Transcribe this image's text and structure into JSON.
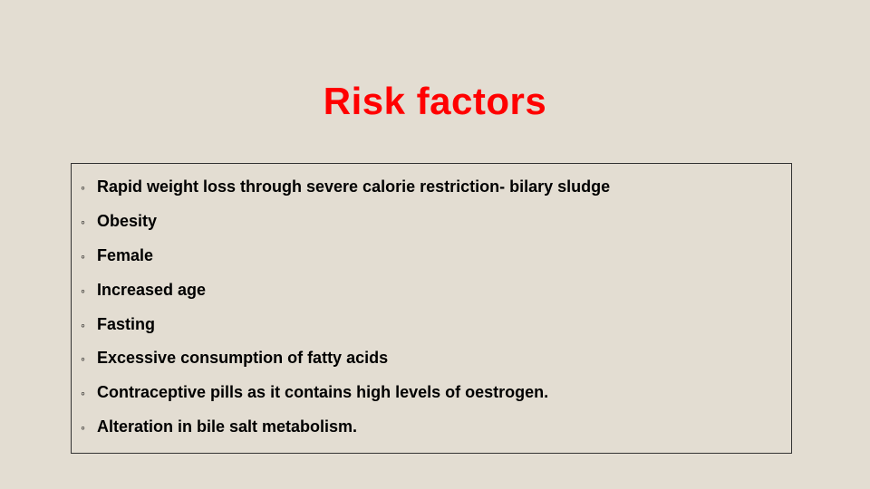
{
  "slide": {
    "title": "Risk factors",
    "title_color": "#ff0000",
    "title_fontsize": 42,
    "background_color": "#e3ddd2",
    "box_border_color": "#333333",
    "text_color": "#000000",
    "body_fontsize": 18,
    "bullet_glyph": "◦",
    "items": [
      "Rapid weight loss through severe calorie restriction- bilary sludge",
      "Obesity",
      "Female",
      "Increased age",
      "Fasting",
      "Excessive consumption of fatty acids",
      "Contraceptive pills as it contains high levels of oestrogen.",
      "Alteration in bile salt metabolism."
    ]
  }
}
